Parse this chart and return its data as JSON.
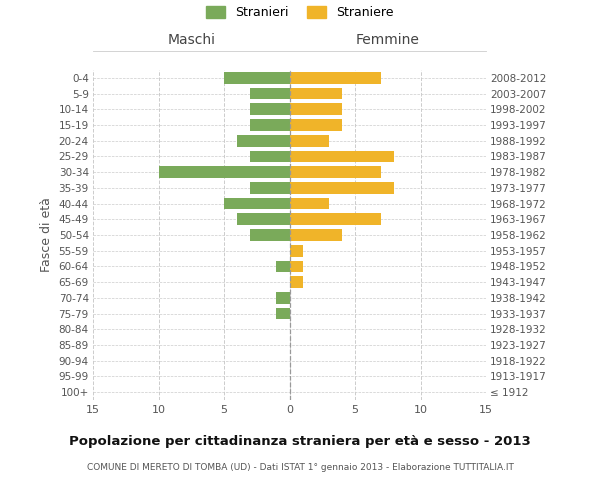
{
  "age_groups": [
    "100+",
    "95-99",
    "90-94",
    "85-89",
    "80-84",
    "75-79",
    "70-74",
    "65-69",
    "60-64",
    "55-59",
    "50-54",
    "45-49",
    "40-44",
    "35-39",
    "30-34",
    "25-29",
    "20-24",
    "15-19",
    "10-14",
    "5-9",
    "0-4"
  ],
  "birth_years": [
    "≤ 1912",
    "1913-1917",
    "1918-1922",
    "1923-1927",
    "1928-1932",
    "1933-1937",
    "1938-1942",
    "1943-1947",
    "1948-1952",
    "1953-1957",
    "1958-1962",
    "1963-1967",
    "1968-1972",
    "1973-1977",
    "1978-1982",
    "1983-1987",
    "1988-1992",
    "1993-1997",
    "1998-2002",
    "2003-2007",
    "2008-2012"
  ],
  "maschi": [
    0,
    0,
    0,
    0,
    0,
    1,
    1,
    0,
    1,
    0,
    3,
    4,
    5,
    3,
    10,
    3,
    4,
    3,
    3,
    3,
    5
  ],
  "femmine": [
    0,
    0,
    0,
    0,
    0,
    0,
    0,
    1,
    1,
    1,
    4,
    7,
    3,
    8,
    7,
    8,
    3,
    4,
    4,
    4,
    7
  ],
  "maschi_color": "#7aaa5a",
  "femmine_color": "#f0b429",
  "title": "Popolazione per cittadinanza straniera per età e sesso - 2013",
  "subtitle": "COMUNE DI MERETO DI TOMBA (UD) - Dati ISTAT 1° gennaio 2013 - Elaborazione TUTTITALIA.IT",
  "left_header": "Maschi",
  "right_header": "Femmine",
  "left_ylabel": "Fasce di età",
  "legend_maschi": "Stranieri",
  "legend_femmine": "Straniere",
  "xlim": 15,
  "background_color": "#ffffff",
  "grid_color": "#cccccc",
  "bar_height": 0.75
}
